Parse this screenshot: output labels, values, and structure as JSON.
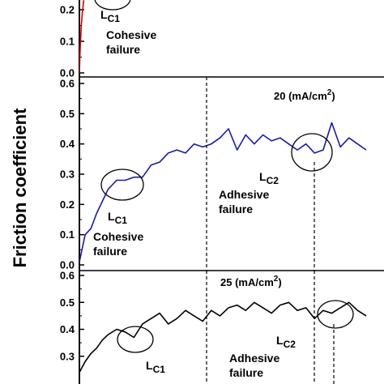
{
  "chart_data": [
    {
      "type": "line",
      "panel": "top",
      "condition_label": "",
      "ylim": [
        0.0,
        0.2
      ],
      "yticks": [
        "0.0",
        "0.1",
        "0.2"
      ],
      "series": [
        {
          "color": "#d40000",
          "x": [
            0.0,
            0.01,
            0.02,
            0.03,
            0.04,
            0.05,
            0.06,
            0.07,
            0.08,
            0.09
          ],
          "y": [
            0.0,
            0.05,
            0.09,
            0.12,
            0.15,
            0.17,
            0.19,
            0.2,
            0.22,
            0.23
          ]
        }
      ],
      "annotations": [
        {
          "kind": "critical-load",
          "letter": "L",
          "sub": "C1",
          "at": [
            0.3,
            0.215
          ]
        },
        {
          "kind": "failure",
          "lines": [
            "Cohesive",
            "failure"
          ],
          "at": [
            0.5,
            0.12
          ]
        }
      ]
    },
    {
      "type": "line",
      "panel": "middle",
      "condition_label": "20 (mA/cm",
      "condition_sup": "2",
      "condition_close": ")",
      "ylim": [
        0.0,
        0.6
      ],
      "yticks": [
        "0.0",
        "0.1",
        "0.2",
        "0.3",
        "0.4",
        "0.5",
        "0.6"
      ],
      "series": [
        {
          "color": "#1a1aa6",
          "x": [
            0.0,
            0.02,
            0.04,
            0.06,
            0.08,
            0.1,
            0.13,
            0.16,
            0.19,
            0.22,
            0.25,
            0.28,
            0.31,
            0.34,
            0.37,
            0.4,
            0.43,
            0.46,
            0.49,
            0.52,
            0.55,
            0.58,
            0.61,
            0.64,
            0.67,
            0.7,
            0.73,
            0.76,
            0.79,
            0.82,
            0.85,
            0.88,
            0.91,
            0.94,
            0.97,
            1.0
          ],
          "y": [
            0.01,
            0.1,
            0.12,
            0.17,
            0.21,
            0.25,
            0.28,
            0.28,
            0.29,
            0.29,
            0.33,
            0.34,
            0.37,
            0.38,
            0.37,
            0.4,
            0.39,
            0.4,
            0.42,
            0.45,
            0.38,
            0.43,
            0.4,
            0.43,
            0.41,
            0.42,
            0.4,
            0.38,
            0.4,
            0.37,
            0.38,
            0.47,
            0.39,
            0.42,
            0.4,
            0.38
          ]
        }
      ],
      "annotations": [
        {
          "kind": "critical-load",
          "letter": "L",
          "sub": "C1",
          "at": [
            0.07,
            0.16
          ]
        },
        {
          "kind": "failure",
          "lines": [
            "Cohesive",
            "failure"
          ],
          "at": [
            0.17,
            0.06
          ]
        },
        {
          "kind": "critical-load",
          "letter": "L",
          "sub": "C2",
          "at": [
            0.69,
            0.28
          ]
        },
        {
          "kind": "failure",
          "lines": [
            "Adhesive",
            "failure"
          ],
          "at": [
            0.55,
            0.23
          ]
        }
      ]
    },
    {
      "type": "line",
      "panel": "bottom",
      "condition_label": "25 (mA/cm",
      "condition_sup": "2",
      "condition_close": ")",
      "ylim": [
        0.2,
        0.6
      ],
      "yticks": [
        "0.3",
        "0.4",
        "0.5",
        "0.6"
      ],
      "series": [
        {
          "color": "#000000",
          "x": [
            0.0,
            0.02,
            0.04,
            0.06,
            0.08,
            0.1,
            0.13,
            0.16,
            0.19,
            0.22,
            0.25,
            0.28,
            0.31,
            0.34,
            0.37,
            0.4,
            0.43,
            0.46,
            0.49,
            0.52,
            0.55,
            0.58,
            0.61,
            0.64,
            0.67,
            0.7,
            0.73,
            0.76,
            0.79,
            0.82,
            0.85,
            0.88,
            0.91,
            0.94,
            0.97,
            1.0
          ],
          "y": [
            0.24,
            0.28,
            0.31,
            0.33,
            0.36,
            0.38,
            0.4,
            0.39,
            0.37,
            0.42,
            0.44,
            0.46,
            0.42,
            0.44,
            0.47,
            0.45,
            0.43,
            0.47,
            0.45,
            0.48,
            0.49,
            0.47,
            0.5,
            0.48,
            0.46,
            0.49,
            0.5,
            0.47,
            0.48,
            0.44,
            0.47,
            0.46,
            0.48,
            0.5,
            0.47,
            0.45
          ]
        }
      ],
      "annotations": [
        {
          "kind": "critical-load",
          "letter": "L",
          "sub": "C1",
          "at": [
            0.2,
            0.26
          ]
        },
        {
          "kind": "failure",
          "lines": [
            "Adhesive",
            "failure"
          ],
          "at": [
            0.55,
            0.28
          ]
        },
        {
          "kind": "critical-load",
          "letter": "L",
          "sub": "C2",
          "at": [
            0.72,
            0.39
          ]
        }
      ]
    }
  ],
  "ylabel": "Friction coefficient"
}
